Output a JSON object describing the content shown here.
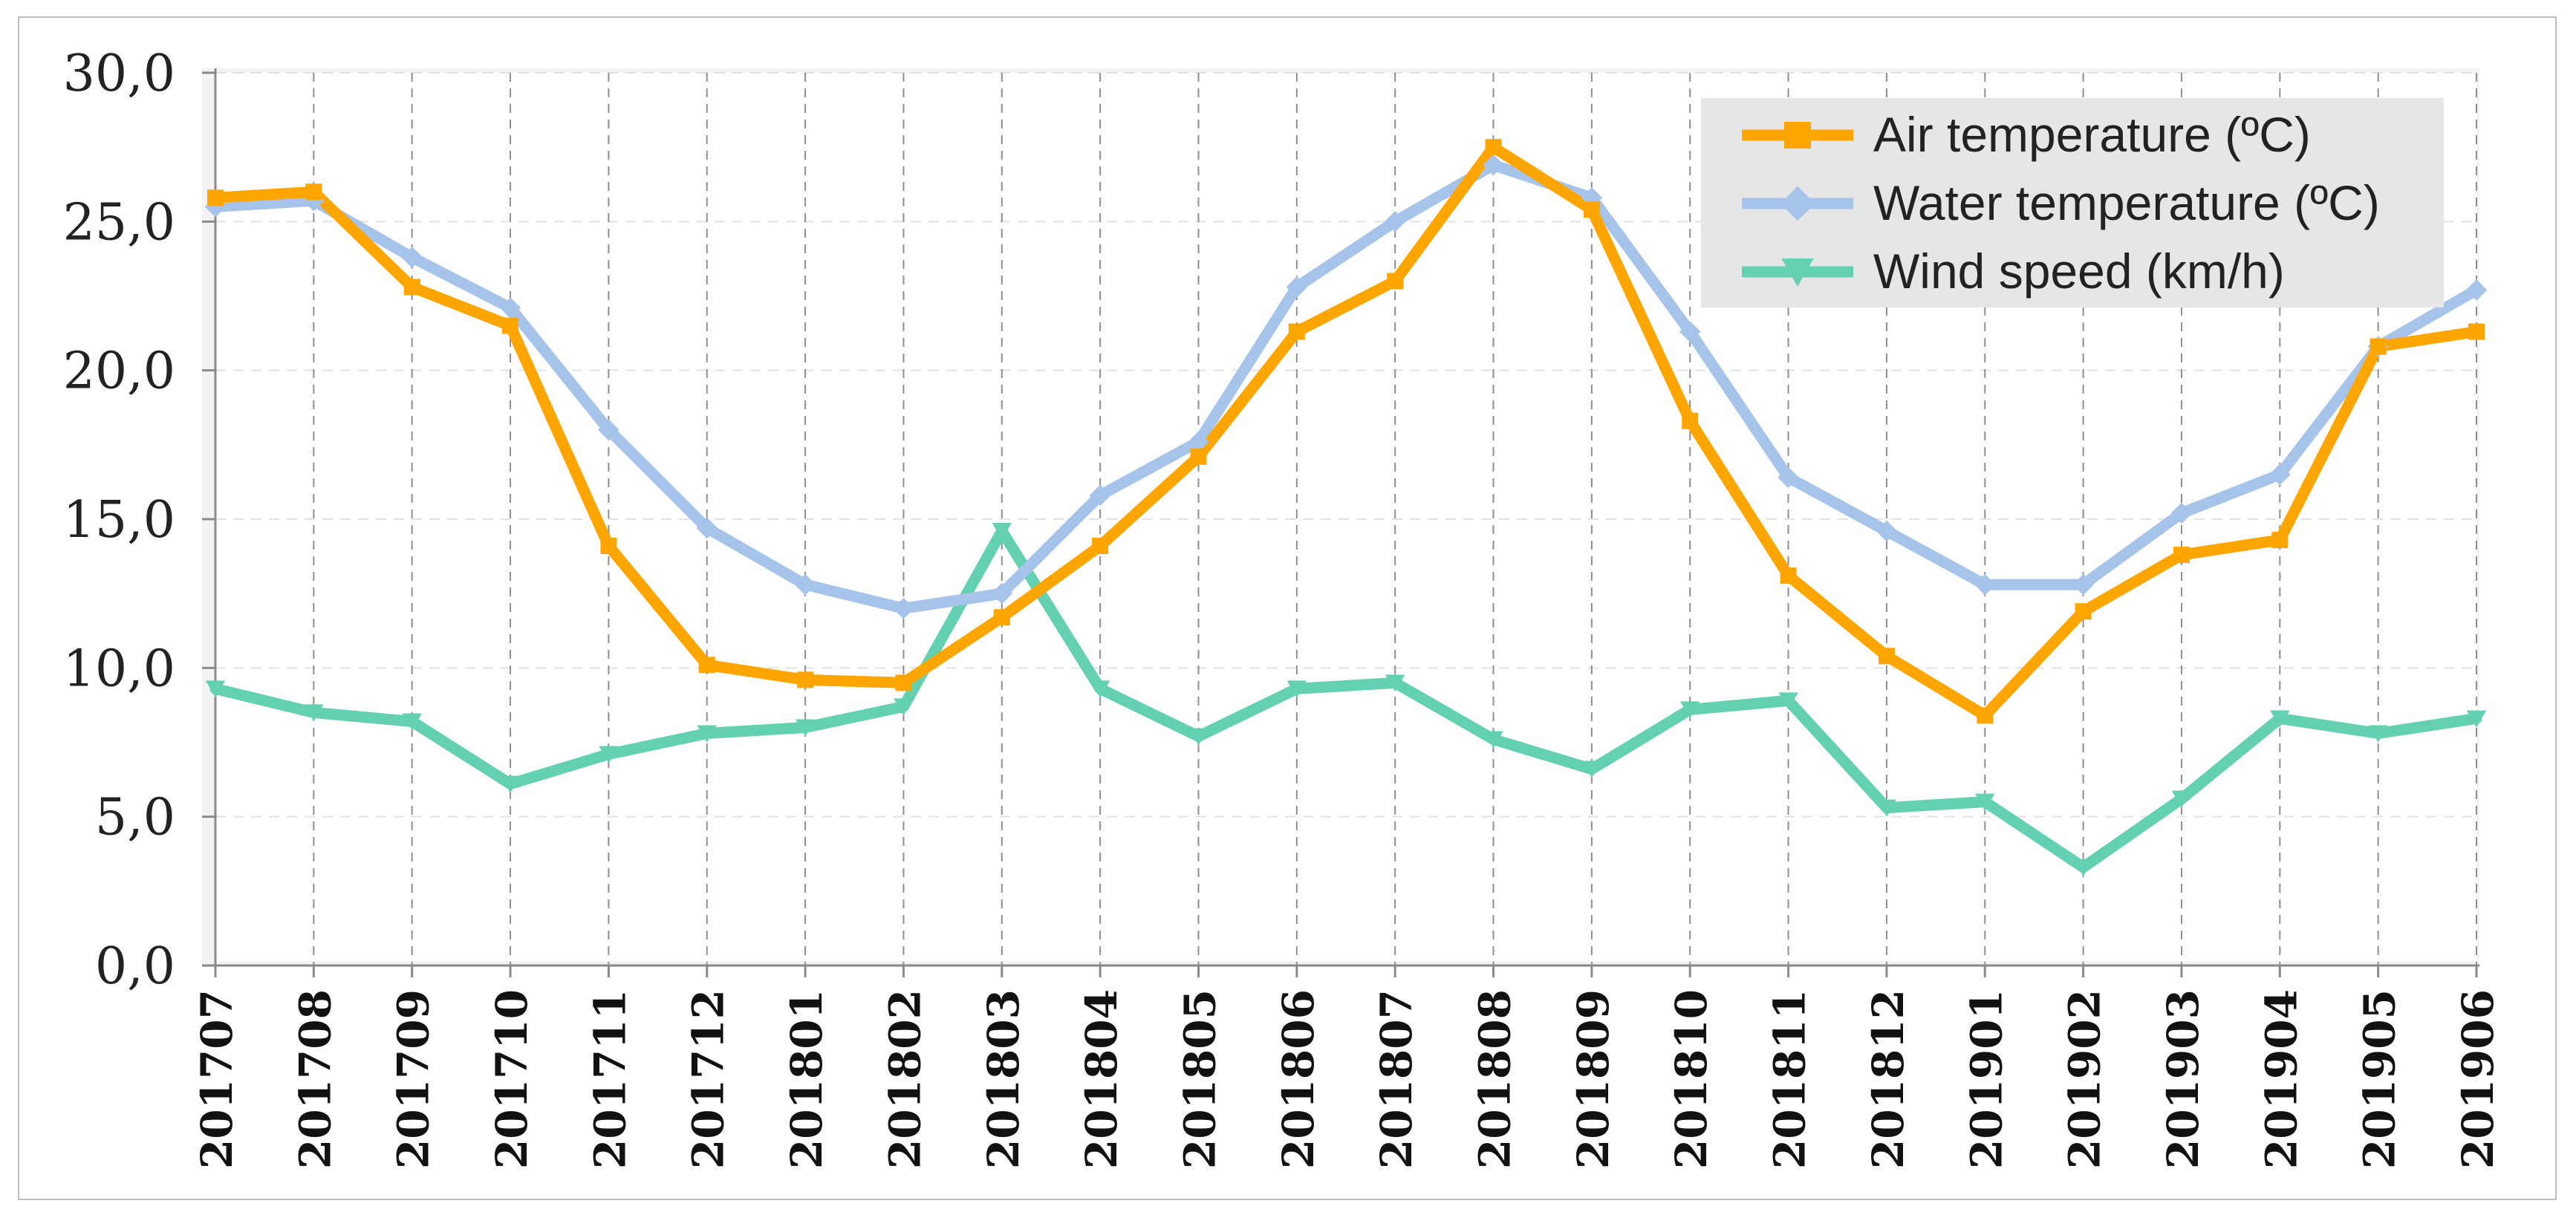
{
  "chart_data": {
    "type": "line",
    "categories": [
      "201707",
      "201708",
      "201709",
      "201710",
      "201711",
      "201712",
      "201801",
      "201802",
      "201803",
      "201804",
      "201805",
      "201806",
      "201807",
      "201808",
      "201809",
      "201810",
      "201811",
      "201812",
      "201901",
      "201902",
      "201903",
      "201904",
      "201905",
      "201906"
    ],
    "series": [
      {
        "name": "Air temperature (ºC)",
        "color": "#ffa500",
        "marker": "square",
        "values": [
          25.8,
          26.0,
          22.8,
          21.5,
          14.1,
          10.1,
          9.6,
          9.5,
          11.7,
          14.1,
          17.1,
          21.3,
          23.0,
          27.5,
          25.4,
          18.3,
          13.1,
          10.4,
          8.4,
          11.9,
          13.8,
          14.3,
          20.8,
          21.3
        ]
      },
      {
        "name": "Water temperature (ºC)",
        "color": "#a6c4ea",
        "marker": "diamond",
        "values": [
          25.5,
          25.7,
          23.8,
          22.1,
          18.0,
          14.7,
          12.8,
          12.0,
          12.5,
          15.8,
          17.6,
          22.8,
          25.0,
          26.9,
          25.8,
          21.3,
          16.4,
          14.6,
          12.8,
          12.8,
          15.2,
          16.5,
          20.8,
          22.7
        ]
      },
      {
        "name": "Wind speed (km/h)",
        "color": "#64d0b2",
        "marker": "triangle-down",
        "values": [
          9.3,
          8.5,
          8.2,
          6.1,
          7.1,
          7.8,
          8.0,
          8.7,
          14.6,
          9.3,
          7.7,
          9.3,
          9.5,
          7.6,
          6.6,
          8.6,
          8.9,
          5.3,
          5.5,
          3.3,
          5.6,
          8.3,
          7.8,
          8.3
        ]
      }
    ],
    "y_ticks": [
      "0,0",
      "5,0",
      "10,0",
      "15,0",
      "20,0",
      "25,0",
      "30,0"
    ],
    "ylim": [
      0,
      30
    ],
    "title": "",
    "xlabel": "",
    "ylabel": "",
    "legend_position": "top-right",
    "grid": true
  }
}
